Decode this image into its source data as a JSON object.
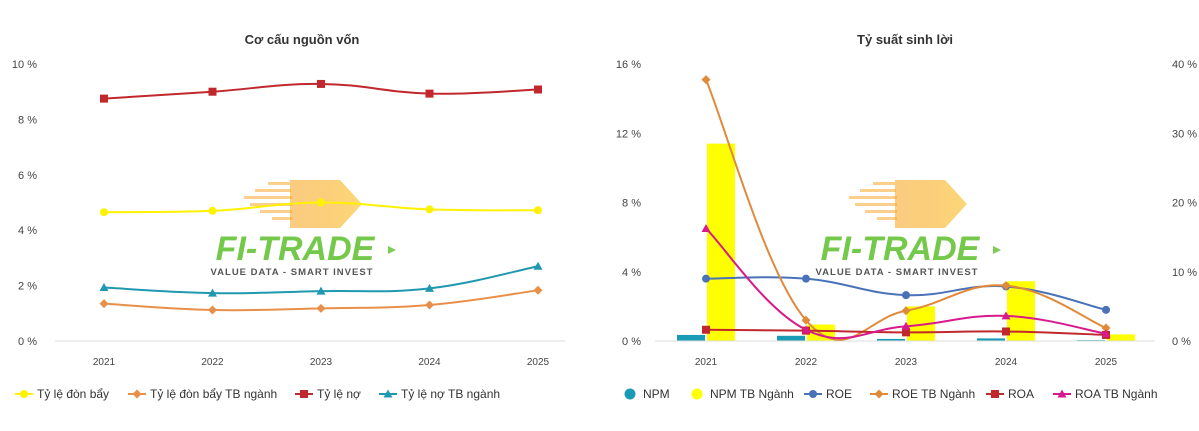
{
  "watermark": {
    "brand": "FI-TRADE",
    "tagline": "VALUE DATA - SMART INVEST",
    "brand_color": "#5cbf2a",
    "accent_color": "#f7a21b"
  },
  "chart_data": [
    {
      "type": "line",
      "title": "Cơ cấu nguồn vốn",
      "categories": [
        "2021",
        "2022",
        "2023",
        "2024",
        "2025"
      ],
      "y_ticks": [
        "10 %",
        "8 %",
        "6 %",
        "4 %",
        "2 %",
        "0 %"
      ],
      "ylim": [
        0,
        10
      ],
      "grid": false,
      "legend_position": "bottom",
      "series": [
        {
          "name": "Tỷ lệ đòn bẩy",
          "values": [
            4.65,
            4.7,
            5.0,
            4.75,
            4.72
          ],
          "color": "#fff200",
          "marker": "circle"
        },
        {
          "name": "Tỷ lệ đòn bẩy TB ngành",
          "values": [
            1.35,
            1.12,
            1.18,
            1.3,
            1.83
          ],
          "color": "#e8904a",
          "marker": "diamond"
        },
        {
          "name": "Tỷ lệ nợ",
          "values": [
            8.75,
            9.0,
            9.28,
            8.93,
            9.08
          ],
          "color": "#c0282d",
          "marker": "square"
        },
        {
          "name": "Tỷ lệ nợ TB ngành",
          "values": [
            1.93,
            1.73,
            1.8,
            1.9,
            2.7
          ],
          "color": "#1f98b0",
          "marker": "triangle"
        }
      ]
    },
    {
      "type": "bar+line",
      "title": "Tỷ suất sinh lời",
      "categories": [
        "2021",
        "2022",
        "2023",
        "2024",
        "2025"
      ],
      "y_ticks": [
        "16 %",
        "12 %",
        "8 %",
        "4 %",
        "0 %"
      ],
      "y2_ticks": [
        "40 %",
        "30 %",
        "20 %",
        "10 %",
        "0 %"
      ],
      "ylim": [
        0,
        16
      ],
      "y2lim": [
        0,
        40
      ],
      "grid": false,
      "legend_position": "bottom",
      "bar_series": [
        {
          "name": "NPM",
          "axis": "left",
          "values": [
            0.35,
            0.3,
            0.12,
            0.15,
            0.05
          ],
          "color": "#1a9bb5",
          "marker": "circle"
        },
        {
          "name": "NPM TB Ngành",
          "axis": "left",
          "values": [
            11.4,
            0.95,
            2.0,
            3.45,
            0.38
          ],
          "color": "#ffff00",
          "marker": "circle"
        }
      ],
      "line_series": [
        {
          "name": "ROE",
          "axis": "left",
          "values": [
            3.6,
            3.6,
            2.65,
            3.15,
            1.8
          ],
          "color": "#4a72b8",
          "marker": "circle"
        },
        {
          "name": "ROE TB Ngành",
          "axis": "left",
          "values": [
            15.1,
            1.2,
            1.75,
            3.2,
            0.75
          ],
          "color": "#e08a3a",
          "marker": "diamond"
        },
        {
          "name": "ROA",
          "axis": "left",
          "values": [
            0.65,
            0.6,
            0.5,
            0.55,
            0.35
          ],
          "color": "#c0282d",
          "marker": "square"
        },
        {
          "name": "ROA TB Ngành",
          "axis": "left",
          "values": [
            6.5,
            0.65,
            0.85,
            1.45,
            0.42
          ],
          "color": "#d81b8c",
          "marker": "triangle"
        }
      ]
    }
  ]
}
